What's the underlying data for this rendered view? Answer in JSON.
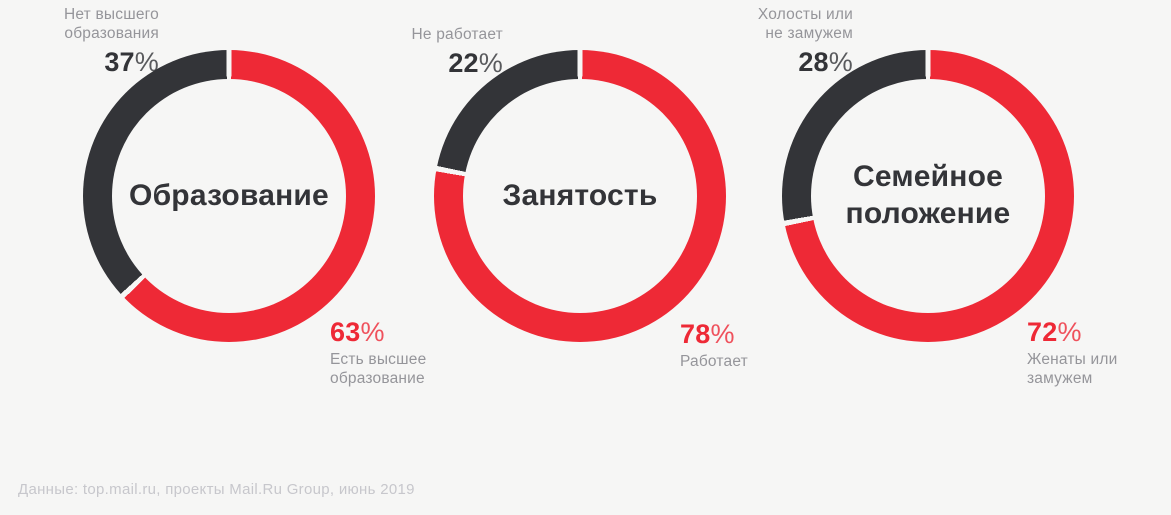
{
  "background": "#f6f6f5",
  "colors": {
    "red": "#ee2936",
    "dark": "#333438",
    "label_gray": "#95959a",
    "footer_gray": "#c7c7cc"
  },
  "percent_sign": "%",
  "chart_data": [
    {
      "type": "pie",
      "donut": true,
      "title": "Образование",
      "slices": [
        {
          "label": "Есть высшее\nобразование",
          "pct": "63",
          "value": 63,
          "color_role": "red"
        },
        {
          "label": "Нет высшего\nобразования",
          "pct": "37",
          "value": 37,
          "color_role": "dark"
        }
      ],
      "start_angle_deg": 0,
      "direction": "clockwise"
    },
    {
      "type": "pie",
      "donut": true,
      "title": "Занятость",
      "slices": [
        {
          "label": "Работает",
          "pct": "78",
          "value": 78,
          "color_role": "red"
        },
        {
          "label": "Не работает",
          "pct": "22",
          "value": 22,
          "color_role": "dark"
        }
      ],
      "start_angle_deg": 0,
      "direction": "clockwise"
    },
    {
      "type": "pie",
      "donut": true,
      "title": "Семейное\nположение",
      "slices": [
        {
          "label": "Женаты или\nзамужем",
          "pct": "72",
          "value": 72,
          "color_role": "red"
        },
        {
          "label": "Холосты или\nне замужем",
          "pct": "28",
          "value": 28,
          "color_role": "dark"
        }
      ],
      "start_angle_deg": 0,
      "direction": "clockwise"
    }
  ],
  "footer": {
    "source_note": "Данные: top.mail.ru, проекты Mail.Ru Group, июнь 2019"
  }
}
